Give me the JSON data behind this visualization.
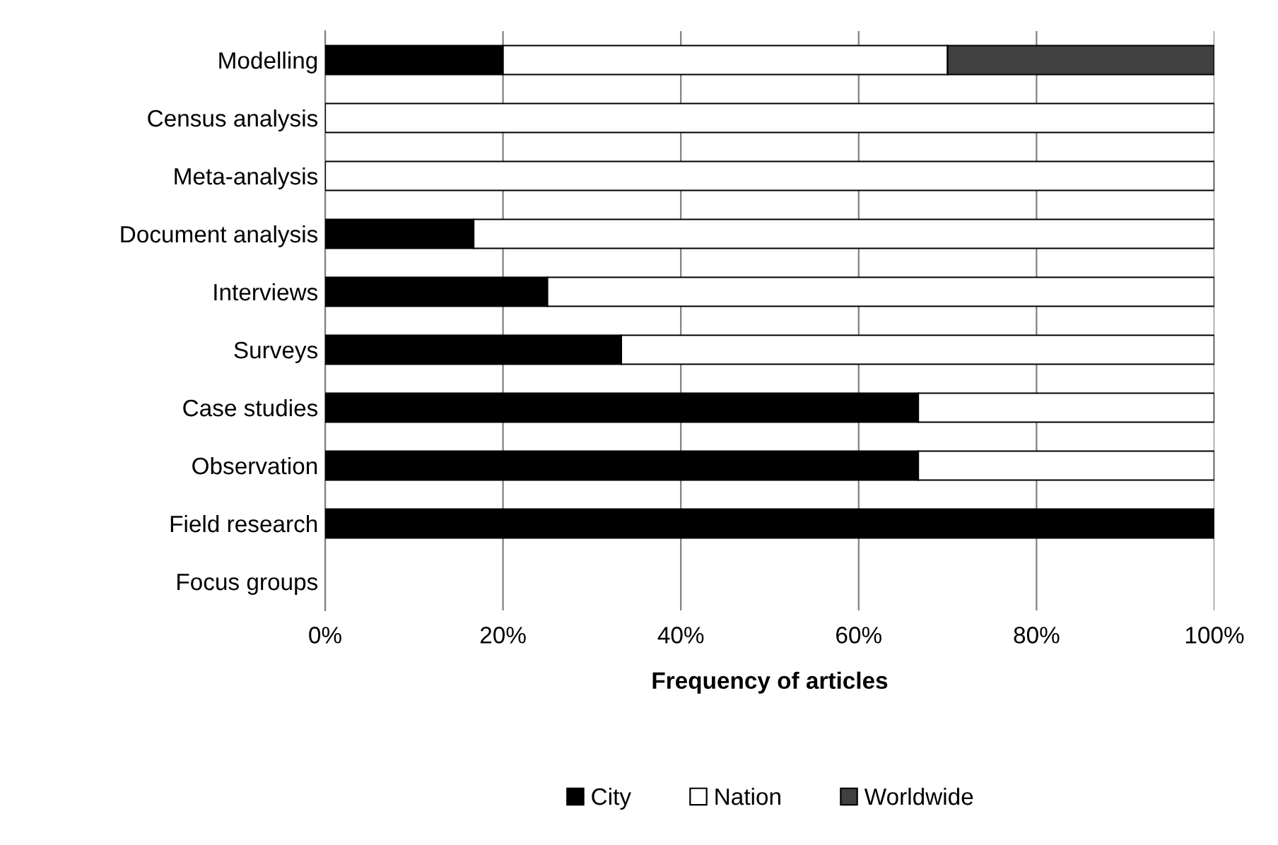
{
  "chart_data": {
    "type": "bar",
    "orientation": "horizontal",
    "stacked": true,
    "xlabel": "Frequency of articles",
    "categories": [
      "Modelling",
      "Census analysis",
      "Meta-analysis",
      "Document analysis",
      "Interviews",
      "Surveys",
      "Case studies",
      "Observation",
      "Field research",
      "Focus groups"
    ],
    "series": [
      {
        "name": "City",
        "color": "#000000",
        "values": [
          20,
          null,
          null,
          16.7,
          25,
          33.3,
          66.7,
          66.7,
          100,
          0
        ]
      },
      {
        "name": "Nation",
        "color": "#ffffff",
        "values": [
          50,
          100,
          100,
          83.3,
          75,
          66.7,
          33.3,
          33.3,
          null,
          null
        ]
      },
      {
        "name": "Worldwide",
        "color": "#404040",
        "values": [
          30,
          null,
          null,
          null,
          null,
          null,
          null,
          null,
          null,
          null
        ]
      }
    ],
    "xlim": [
      0,
      100
    ],
    "xticks": [
      {
        "value": 0,
        "label": "0%"
      },
      {
        "value": 20,
        "label": "20%"
      },
      {
        "value": 40,
        "label": "40%"
      },
      {
        "value": 60,
        "label": "60%"
      },
      {
        "value": 80,
        "label": "80%"
      },
      {
        "value": 100,
        "label": "100%"
      }
    ],
    "grid": "x",
    "legend": "bottom"
  }
}
